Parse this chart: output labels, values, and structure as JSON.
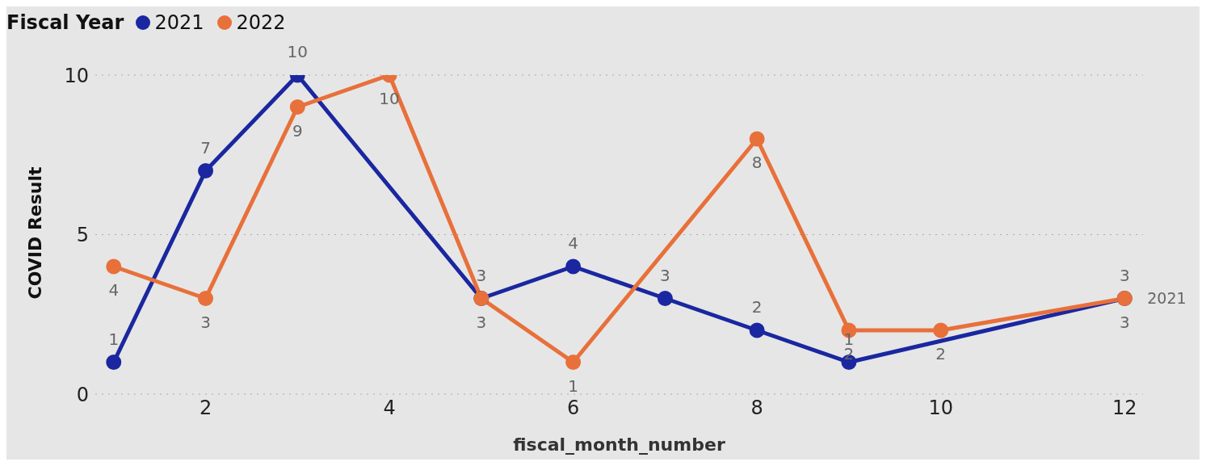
{
  "chart_data": {
    "type": "line",
    "xlabel": "fiscal_month_number",
    "ylabel": "COVID Result",
    "legend_title": "Fiscal Year",
    "legend": "top left",
    "series": [
      {
        "name": "2021",
        "color": "#1a27a0",
        "x": [
          1,
          2,
          3,
          5,
          6,
          7,
          8,
          9,
          12
        ],
        "values": [
          1,
          7,
          10,
          3,
          4,
          3,
          2,
          1,
          3
        ]
      },
      {
        "name": "2022",
        "color": "#e8703a",
        "x": [
          1,
          2,
          3,
          4,
          5,
          6,
          8,
          9,
          10,
          12
        ],
        "values": [
          4,
          3,
          9,
          10,
          3,
          1,
          8,
          2,
          2,
          3
        ]
      }
    ],
    "xlim": [
      0.8,
      12.2
    ],
    "xticks": [
      2,
      4,
      6,
      8,
      10,
      12
    ],
    "ylim": [
      0,
      10
    ],
    "yticks": [
      0,
      5,
      10
    ],
    "grid": "y",
    "marker": "circle",
    "data_labels": true,
    "annotations": [
      {
        "text": "2021",
        "x": 12,
        "y": 3
      }
    ]
  }
}
